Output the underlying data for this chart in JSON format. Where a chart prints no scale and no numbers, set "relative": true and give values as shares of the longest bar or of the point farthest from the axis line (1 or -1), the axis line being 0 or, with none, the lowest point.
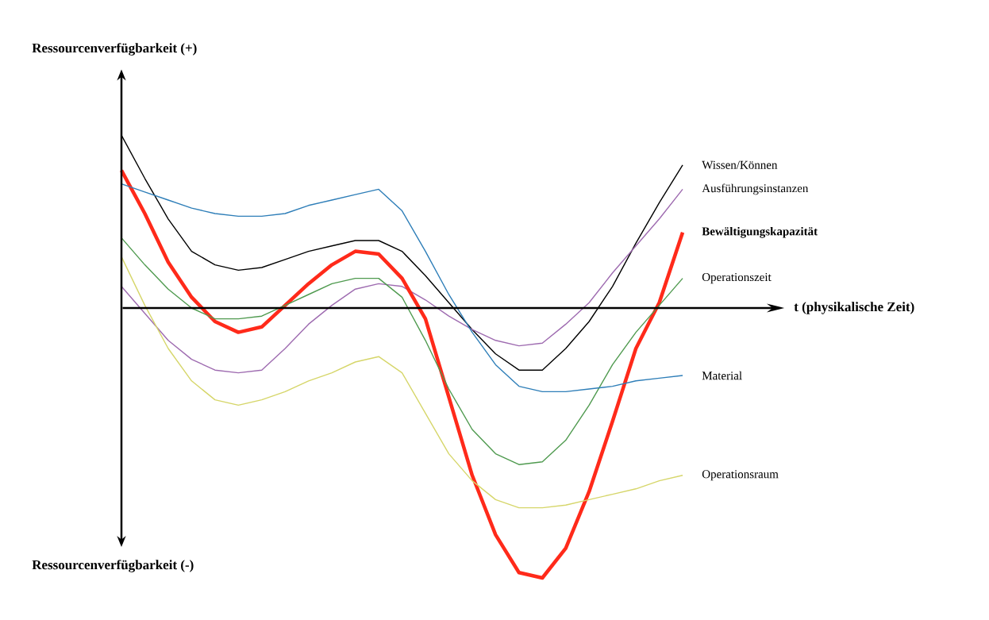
{
  "chart_data": {
    "type": "line",
    "relative": true,
    "annotations": [
      "Ressourcenverfügbarkeit (+)",
      "Ressourcenverfügbarkeit (-)",
      "t (physikalische Zeit)"
    ],
    "categories": [
      null,
      null,
      null,
      null,
      null,
      null,
      null,
      null,
      null,
      null,
      null,
      null,
      null,
      null,
      null,
      null,
      null,
      null,
      null,
      null,
      null,
      null,
      null,
      null,
      null
    ],
    "marker": "none",
    "line_style": "solid",
    "series": [
      {
        "name": "Wissen/Können",
        "color": "#000000",
        "values": [
          0.64,
          0.48,
          0.33,
          0.21,
          0.16,
          0.14,
          0.15,
          0.18,
          0.21,
          0.23,
          0.25,
          0.25,
          0.21,
          0.12,
          0.02,
          -0.08,
          -0.17,
          -0.23,
          -0.23,
          -0.15,
          -0.05,
          0.08,
          0.24,
          0.39,
          0.53
        ]
      },
      {
        "name": "Ausführungsinstanzen",
        "color": "#9e6bb0",
        "values": [
          0.08,
          -0.02,
          -0.12,
          -0.19,
          -0.23,
          -0.24,
          -0.23,
          -0.15,
          -0.06,
          0.01,
          0.07,
          0.09,
          0.08,
          0.03,
          -0.03,
          -0.08,
          -0.12,
          -0.14,
          -0.13,
          -0.06,
          0.02,
          0.13,
          0.23,
          0.33,
          0.44
        ]
      },
      {
        "name": "**Bewältigungskapazität**",
        "color": "#ff2a1a",
        "values": [
          0.51,
          0.35,
          0.17,
          0.04,
          -0.05,
          -0.09,
          -0.07,
          0.01,
          0.09,
          0.16,
          0.21,
          0.2,
          0.11,
          -0.04,
          -0.33,
          -0.62,
          -0.84,
          -0.98,
          -1,
          -0.89,
          -0.68,
          -0.42,
          -0.15,
          0.02,
          0.28
        ]
      },
      {
        "name": "Operationszeit",
        "color": "#4f9a4f",
        "values": [
          0.26,
          0.16,
          0.07,
          0,
          -0.04,
          -0.04,
          -0.03,
          0.01,
          0.05,
          0.09,
          0.11,
          0.11,
          0.04,
          -0.12,
          -0.3,
          -0.45,
          -0.54,
          -0.58,
          -0.57,
          -0.49,
          -0.36,
          -0.21,
          -0.09,
          0.01,
          0.11
        ]
      },
      {
        "name": "Material",
        "color": "#2e7eb8",
        "values": [
          0.46,
          0.43,
          0.4,
          0.37,
          0.35,
          0.34,
          0.34,
          0.35,
          0.38,
          0.4,
          0.42,
          0.44,
          0.36,
          0.21,
          0.05,
          -0.09,
          -0.21,
          -0.29,
          -0.31,
          -0.31,
          -0.3,
          -0.29,
          -0.27,
          -0.26,
          -0.25
        ]
      },
      {
        "name": "Operationsraum",
        "color": "#d6d66a",
        "values": [
          0.19,
          0.01,
          -0.15,
          -0.27,
          -0.34,
          -0.36,
          -0.34,
          -0.31,
          -0.27,
          -0.24,
          -0.2,
          -0.18,
          -0.24,
          -0.39,
          -0.54,
          -0.64,
          -0.71,
          -0.74,
          -0.74,
          -0.73,
          -0.71,
          -0.69,
          -0.67,
          -0.64,
          -0.62
        ]
      }
    ]
  }
}
